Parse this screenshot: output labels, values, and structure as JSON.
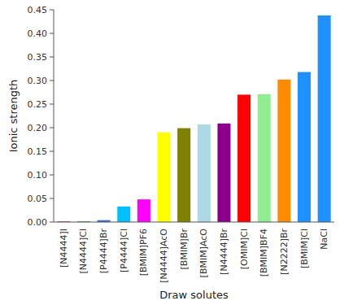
{
  "chart_data": {
    "type": "bar",
    "categories": [
      "[N4444]I",
      "[N4444]Cl",
      "[P4444]Br",
      "[P4444]Cl",
      "[BMIM]PF6",
      "[N4444]AcO",
      "[BMIM]Br",
      "[BMIM]AcO",
      "[N4444]Br",
      "[OMIM]Cl",
      "[BMIM]BF4",
      "[N2222]Br",
      "[BMIM]Cl",
      "NaCl"
    ],
    "values": [
      0.001,
      0.001,
      0.004,
      0.033,
      0.048,
      0.19,
      0.199,
      0.207,
      0.209,
      0.27,
      0.271,
      0.302,
      0.318,
      0.438
    ],
    "colors": [
      "#800000",
      "#006400",
      "#4169E1",
      "#00BFFF",
      "#FF00FF",
      "#FFFF00",
      "#808000",
      "#ADD8E6",
      "#8B008B",
      "#FF0000",
      "#90EE90",
      "#FF8C00",
      "#1E90FF",
      "#1E90FF"
    ],
    "xlabel": "Draw solutes",
    "ylabel": "Ionic strength",
    "ylim": [
      0,
      0.45
    ],
    "yticks": [
      {
        "value": 0.0,
        "label": "0.00"
      },
      {
        "value": 0.05,
        "label": "0.05"
      },
      {
        "value": 0.1,
        "label": "0.10"
      },
      {
        "value": 0.15,
        "label": "0.15"
      },
      {
        "value": 0.2,
        "label": "0.20"
      },
      {
        "value": 0.25,
        "label": "0.25"
      },
      {
        "value": 0.3,
        "label": "0.30"
      },
      {
        "value": 0.35,
        "label": "0.35"
      },
      {
        "value": 0.4,
        "label": "0.40"
      },
      {
        "value": 0.45,
        "label": "0.45"
      }
    ]
  }
}
